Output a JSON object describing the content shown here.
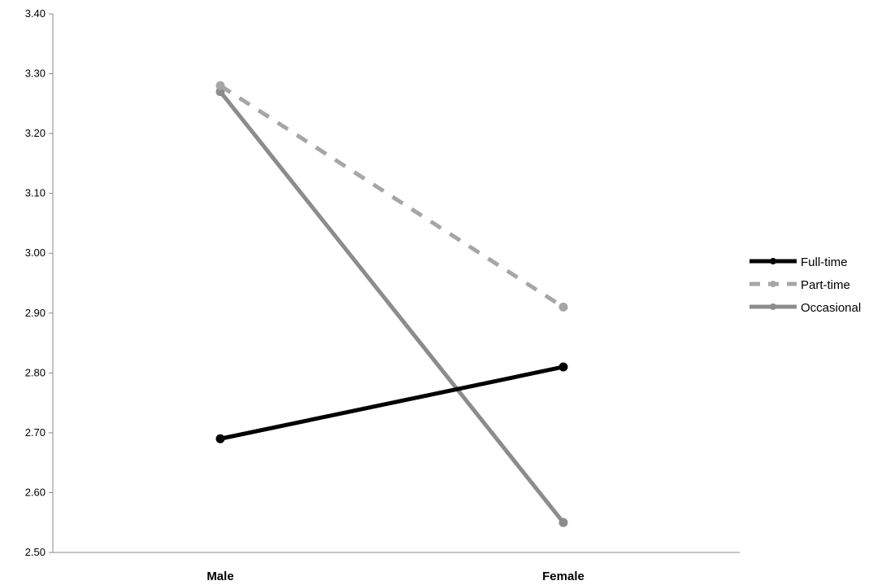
{
  "chart_data": {
    "type": "line",
    "categories": [
      "Male",
      "Female"
    ],
    "ylim": [
      2.5,
      3.4
    ],
    "yticks": [
      "2.50",
      "2.60",
      "2.70",
      "2.80",
      "2.90",
      "3.00",
      "3.10",
      "3.20",
      "3.30",
      "3.40"
    ],
    "grid": false,
    "legend_position": "right",
    "series": [
      {
        "name": "Full-time",
        "values": [
          2.69,
          2.81
        ],
        "color": "#000000",
        "dash": "solid"
      },
      {
        "name": "Part-time",
        "values": [
          3.28,
          2.91
        ],
        "color": "#a6a6a6",
        "dash": "dashed"
      },
      {
        "name": "Occasional",
        "values": [
          3.27,
          2.55
        ],
        "color": "#8c8c8c",
        "dash": "solid"
      }
    ]
  }
}
